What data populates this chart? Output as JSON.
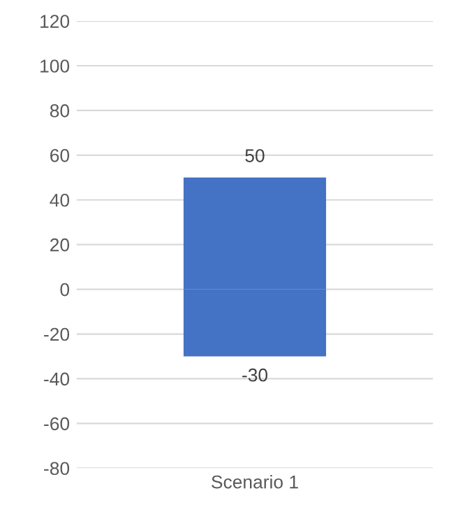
{
  "chart_data": {
    "type": "bar",
    "categories": [
      "Scenario 1"
    ],
    "stacked": true,
    "series": [
      {
        "color": "#4472c4",
        "values": [
          50
        ]
      },
      {
        "color": "#4472c4",
        "values": [
          -30
        ]
      }
    ],
    "ylim": [
      -80,
      120
    ],
    "yticks": [
      -80,
      -60,
      -40,
      -20,
      0,
      20,
      40,
      60,
      80,
      100,
      120
    ],
    "grid": "y",
    "data_labels": true
  }
}
